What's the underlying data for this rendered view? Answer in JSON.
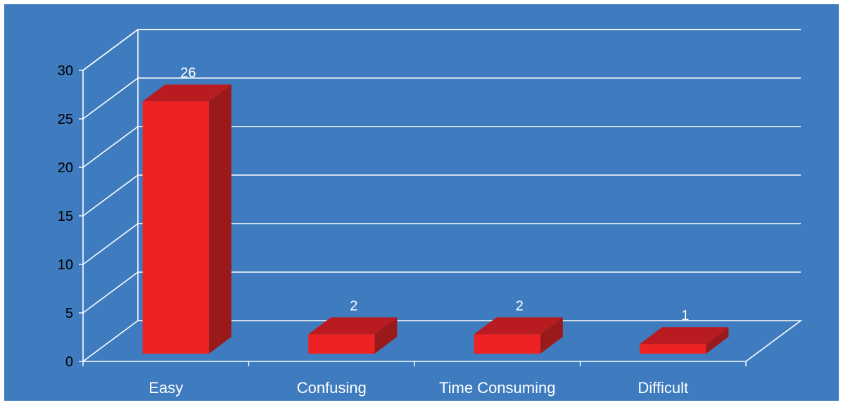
{
  "chart_data": {
    "type": "bar",
    "title": "",
    "xlabel": "",
    "ylabel": "",
    "categories": [
      "Easy",
      "Confusing",
      "Time Consuming",
      "Difficult"
    ],
    "values": [
      26,
      2,
      2,
      1
    ],
    "data_labels": [
      "26",
      "2",
      "2",
      "1"
    ],
    "ylim": [
      0,
      30
    ],
    "yticks": [
      "0",
      "5",
      "10",
      "15",
      "20",
      "25",
      "30"
    ],
    "grid": true,
    "legend": "none",
    "colors": {
      "background": "#3f7cbf",
      "bar_front": "#ee2222",
      "bar_side": "#9a1a1c",
      "bar_top": "#b81c20",
      "grid": "#ffffff",
      "text": "#ffffff",
      "axis_text": "#000000"
    }
  }
}
